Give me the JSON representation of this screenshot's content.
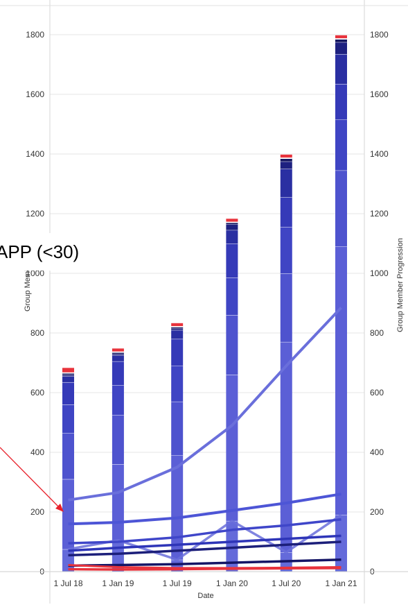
{
  "colors": {
    "bar_segments": [
      "#646ADA",
      "#5B5FD6",
      "#4E53CE",
      "#3F45C4",
      "#353AB8",
      "#2A2FA2",
      "#1E2180",
      "#151760",
      "#FFFFFF",
      "#E8333C"
    ],
    "lines": [
      "#6A6FDB",
      "#4D55D6",
      "#3F46C9",
      "#2E35B8",
      "#1C1F7A",
      "#141566",
      "#E8333C"
    ],
    "grid": "#E6E6E6",
    "annotation_arrow": "#E8202A",
    "background": "#FFFFFF"
  },
  "annotation": {
    "text": "APP (<30)"
  },
  "chart_data": {
    "type": "bar",
    "x_title": "Date",
    "y_left_title": "Group Member",
    "y_right_title": "Group Member Progression",
    "x_ticks": [
      "1 Jul 18",
      "1 Jan 19",
      "1 Jul 19",
      "1 Jan 20",
      "1 Jul 20",
      "1 Jan 21"
    ],
    "y_ticks": [
      "0",
      "200",
      "400",
      "600",
      "800",
      "1000",
      "1200",
      "1400",
      "1600",
      "1800"
    ],
    "ylim": [
      0,
      1860
    ],
    "grid": true,
    "bars": [
      {
        "date": "2018-07-01",
        "segments": [
          75,
          235,
          155,
          95,
          75,
          20,
          5,
          5,
          3,
          15
        ]
      },
      {
        "date": "2018-12-15",
        "segments": [
          105,
          255,
          165,
          100,
          80,
          20,
          5,
          5,
          3,
          10
        ]
      },
      {
        "date": "2019-07-01",
        "segments": [
          40,
          350,
          180,
          120,
          90,
          30,
          5,
          5,
          3,
          10
        ]
      },
      {
        "date": "2020-01-01",
        "segments": [
          170,
          490,
          200,
          125,
          115,
          45,
          20,
          5,
          3,
          10
        ]
      },
      {
        "date": "2020-07-01",
        "segments": [
          65,
          705,
          230,
          155,
          100,
          95,
          25,
          10,
          3,
          10
        ]
      },
      {
        "date": "2021-01-01",
        "segments": [
          190,
          900,
          255,
          170,
          120,
          100,
          40,
          10,
          3,
          10
        ]
      }
    ],
    "series": [
      {
        "values": [
          240,
          265,
          350,
          490,
          690,
          885
        ]
      },
      {
        "values": [
          160,
          165,
          180,
          205,
          230,
          260
        ]
      },
      {
        "values": [
          75,
          105,
          40,
          170,
          65,
          190
        ]
      },
      {
        "values": [
          95,
          100,
          115,
          140,
          155,
          175
        ]
      },
      {
        "values": [
          70,
          80,
          90,
          100,
          110,
          120
        ]
      },
      {
        "values": [
          55,
          60,
          70,
          80,
          90,
          100
        ]
      },
      {
        "values": [
          20,
          22,
          25,
          30,
          35,
          40
        ]
      },
      {
        "values": [
          8,
          7,
          8,
          10,
          11,
          12
        ]
      },
      {
        "values": [
          22,
          15,
          12,
          12,
          13,
          15
        ]
      }
    ]
  }
}
